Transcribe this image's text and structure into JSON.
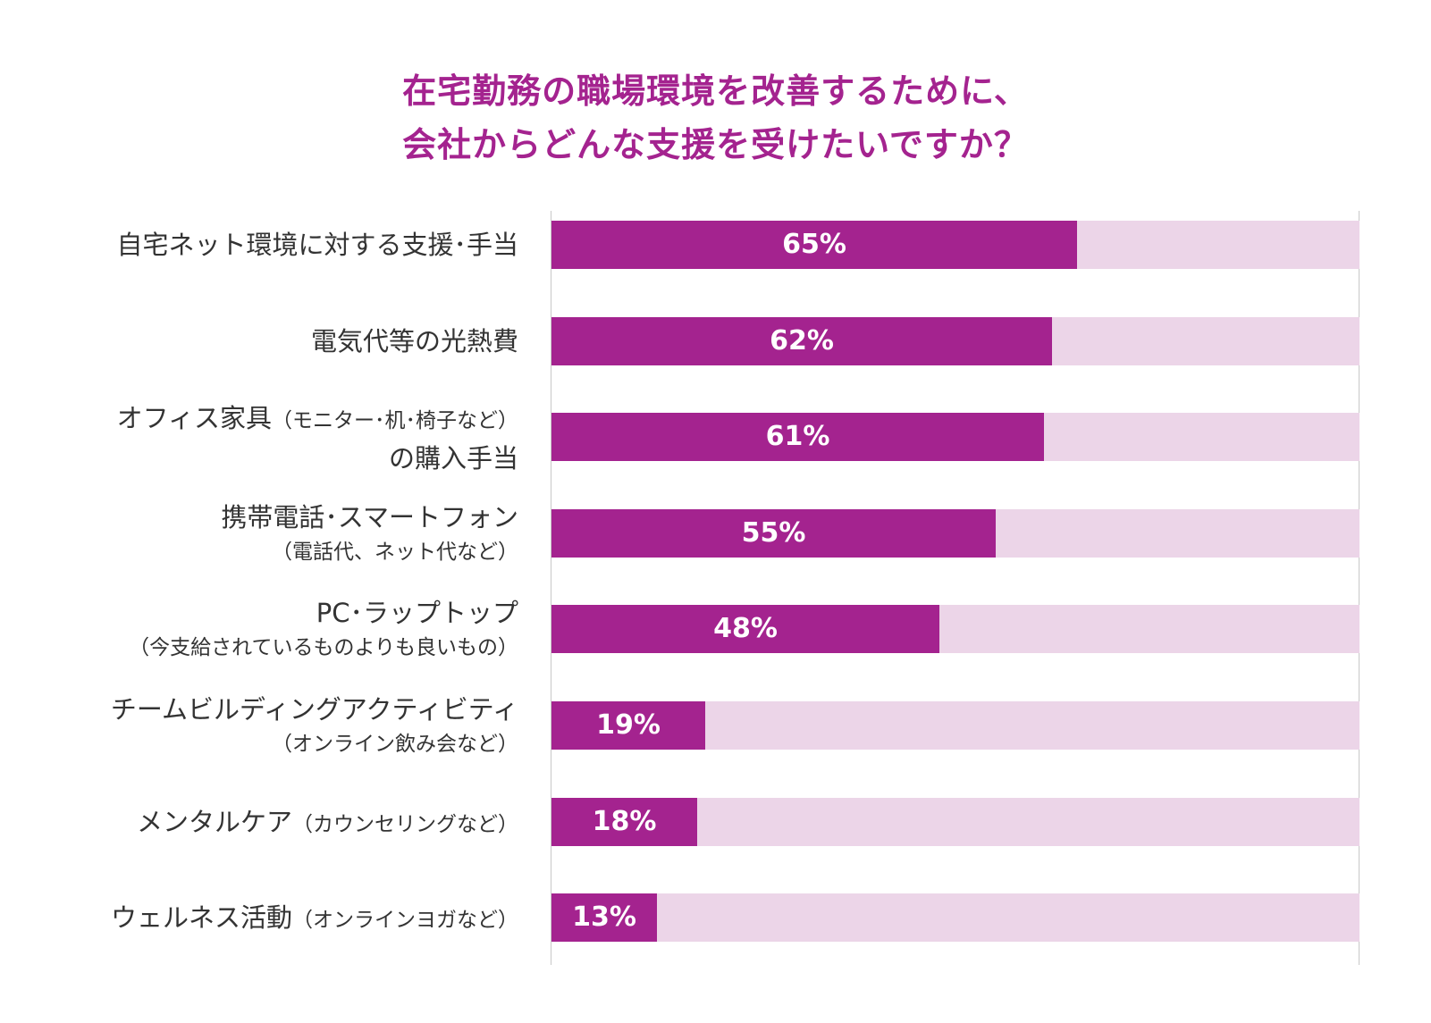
{
  "chart_data": {
    "type": "bar",
    "orientation": "horizontal",
    "title_lines": [
      "在宅勤務の職場環境を改善するために、",
      "会社からどんな支援を受けたいですか？"
    ],
    "xlim": [
      0,
      100
    ],
    "colors": {
      "bar": "#a4238f",
      "track": "#ecd5e8",
      "title": "#a4238f"
    },
    "categories": [
      {
        "main": "自宅ネット環境に対する支援･手当",
        "sub": ""
      },
      {
        "main": "電気代等の光熱費",
        "sub": ""
      },
      {
        "main": "オフィス家具（モニター･机･椅子など）",
        "sub": "の購入手当"
      },
      {
        "main": "携帯電話･スマートフォン",
        "sub": "（電話代、ネット代など）"
      },
      {
        "main": "PC･ラップトップ",
        "sub": "（今支給されているものよりも良いもの）"
      },
      {
        "main": "チームビルディングアクティビティ",
        "sub": "（オンライン飲み会など）"
      },
      {
        "main": "メンタルケア（カウンセリングなど）",
        "sub": ""
      },
      {
        "main": "ウェルネス活動（オンラインヨガなど）",
        "sub": ""
      }
    ],
    "values": [
      65,
      62,
      61,
      55,
      48,
      19,
      18,
      13
    ],
    "value_labels": [
      "65%",
      "62%",
      "61%",
      "55%",
      "48%",
      "19%",
      "18%",
      "13%"
    ]
  }
}
